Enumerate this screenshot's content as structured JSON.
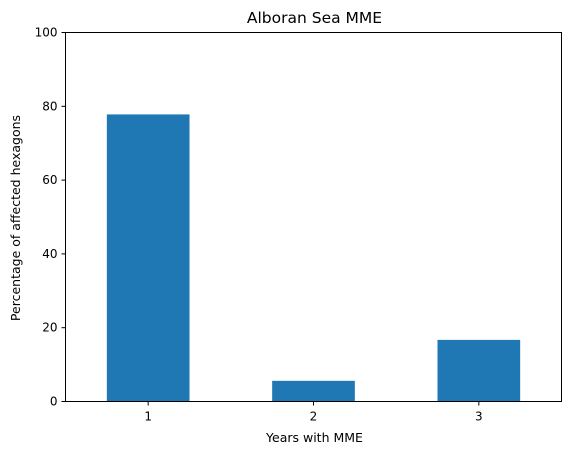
{
  "chart_data": {
    "type": "bar",
    "title": "Alboran Sea MME",
    "xlabel": "Years with MME",
    "ylabel": "Percentage of affected hexagons",
    "categories": [
      "1",
      "2",
      "3"
    ],
    "values": [
      77.8,
      5.6,
      16.7
    ],
    "ylim": [
      0,
      100
    ],
    "yticks": [
      "0",
      "20",
      "40",
      "60",
      "80",
      "100"
    ],
    "grid": false,
    "legend": "none",
    "bar_color": "#1f77b4"
  }
}
